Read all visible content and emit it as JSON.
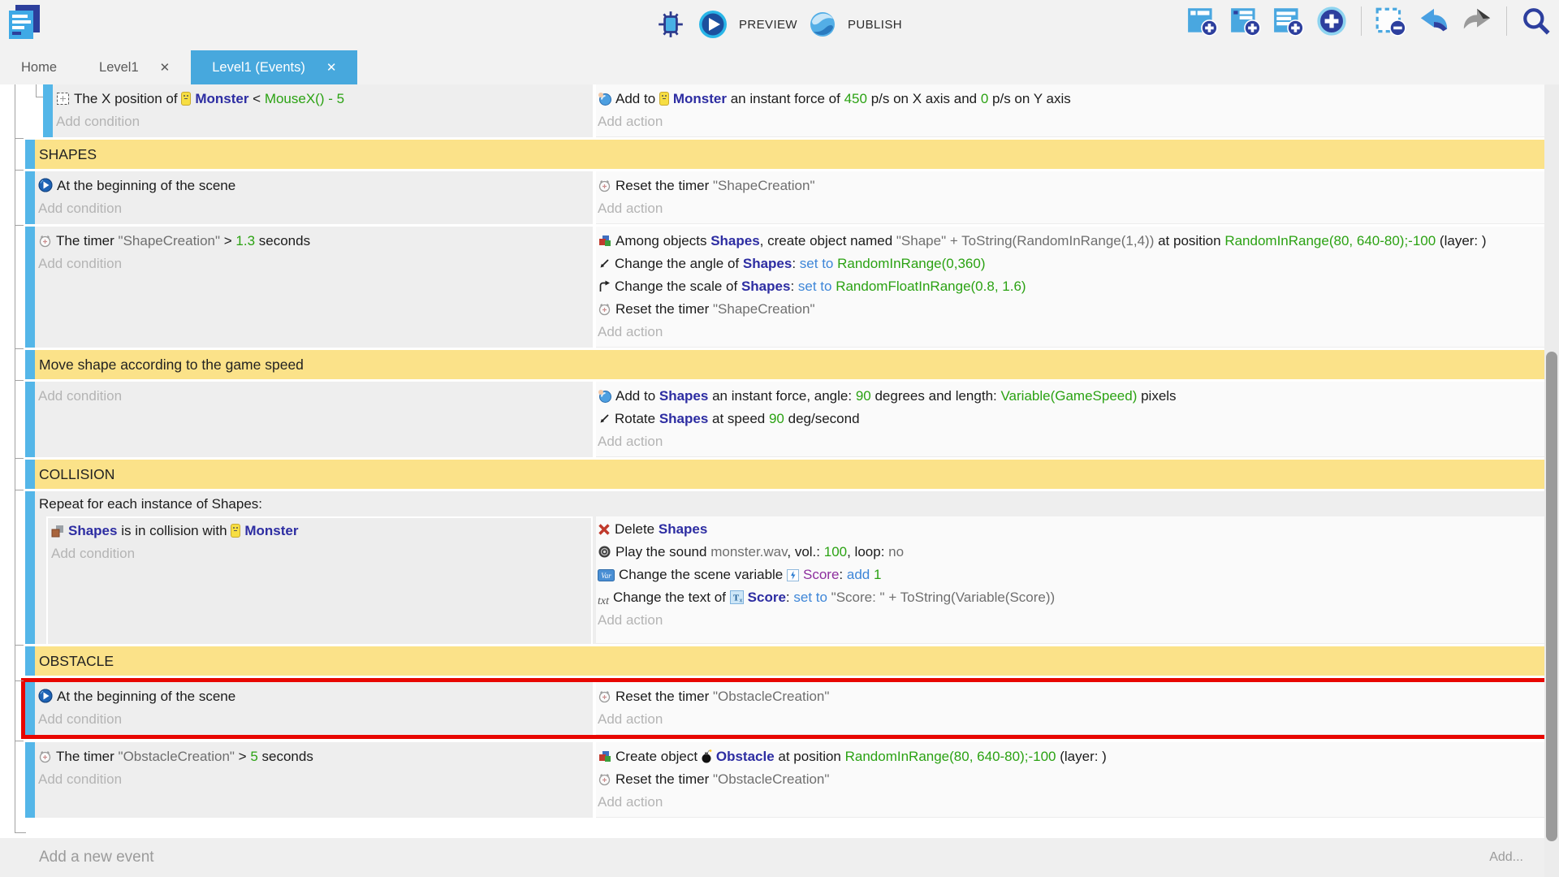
{
  "toolbar": {
    "preview_label": "PREVIEW",
    "publish_label": "PUBLISH",
    "right_icons": [
      "add-event-icon",
      "add-subevent-icon",
      "add-comment-icon",
      "add-new-icon",
      "separator",
      "unselect-icon",
      "undo-icon",
      "redo-icon",
      "separator",
      "search-icon"
    ]
  },
  "tabs": [
    {
      "label": "Home",
      "closable": false,
      "active": false
    },
    {
      "label": "Level1",
      "closable": true,
      "active": false
    },
    {
      "label": "Level1 (Events)",
      "closable": true,
      "active": true
    }
  ],
  "sheet": {
    "add_condition_label": "Add condition",
    "add_action_label": "Add action",
    "rows": [
      {
        "type": "event",
        "indent": true,
        "cond": [
          [
            {
              "i": "position-icon"
            },
            {
              "t": "The X position of ",
              "s": "p"
            },
            {
              "i": "monster-icon"
            },
            {
              "t": "Monster",
              "s": "o"
            },
            {
              "t": " < ",
              "s": "p"
            },
            {
              "t": "MouseX() - 5",
              "s": "g"
            }
          ]
        ],
        "act": [
          [
            {
              "i": "force-icon"
            },
            {
              "t": "Add to ",
              "s": "p"
            },
            {
              "i": "monster-icon"
            },
            {
              "t": "Monster",
              "s": "o"
            },
            {
              "t": " an instant force of ",
              "s": "p"
            },
            {
              "t": "450",
              "s": "g"
            },
            {
              "t": " p/s on X axis and ",
              "s": "p"
            },
            {
              "t": "0",
              "s": "g"
            },
            {
              "t": " p/s on Y axis",
              "s": "p"
            }
          ]
        ]
      },
      {
        "type": "header",
        "label": "SHAPES"
      },
      {
        "type": "event",
        "cond": [
          [
            {
              "i": "play-scene-icon"
            },
            {
              "t": "At the beginning of the scene",
              "s": "p"
            }
          ]
        ],
        "act": [
          [
            {
              "i": "timer-icon"
            },
            {
              "t": "Reset the timer ",
              "s": "p"
            },
            {
              "t": "\"ShapeCreation\"",
              "s": "m"
            }
          ]
        ]
      },
      {
        "type": "event",
        "cond": [
          [
            {
              "i": "timer-icon"
            },
            {
              "t": "The timer ",
              "s": "p"
            },
            {
              "t": "\"ShapeCreation\"",
              "s": "m"
            },
            {
              "t": " > ",
              "s": "p"
            },
            {
              "t": "1.3",
              "s": "g"
            },
            {
              "t": " seconds",
              "s": "p"
            }
          ]
        ],
        "act": [
          [
            {
              "i": "create-icon"
            },
            {
              "t": "Among objects ",
              "s": "p"
            },
            {
              "t": "Shapes",
              "s": "o"
            },
            {
              "t": ", create object named ",
              "s": "p"
            },
            {
              "t": "\"Shape\" + ToString(RandomInRange(1,4))",
              "s": "m"
            },
            {
              "t": " at position ",
              "s": "p"
            },
            {
              "t": "RandomInRange(80, 640-80);-100",
              "s": "g"
            },
            {
              "t": " (layer: )",
              "s": "p"
            }
          ],
          [
            {
              "i": "angle-icon"
            },
            {
              "t": "Change the angle of ",
              "s": "p"
            },
            {
              "t": "Shapes",
              "s": "o"
            },
            {
              "t": ": ",
              "s": "p"
            },
            {
              "t": "set to ",
              "s": "b"
            },
            {
              "t": "RandomInRange(0,360)",
              "s": "g"
            }
          ],
          [
            {
              "i": "scale-icon"
            },
            {
              "t": "Change the scale of ",
              "s": "p"
            },
            {
              "t": "Shapes",
              "s": "o"
            },
            {
              "t": ": ",
              "s": "p"
            },
            {
              "t": "set to ",
              "s": "b"
            },
            {
              "t": "RandomFloatInRange(0.8, 1.6)",
              "s": "g"
            }
          ],
          [
            {
              "i": "timer-icon"
            },
            {
              "t": "Reset the timer ",
              "s": "p"
            },
            {
              "t": "\"ShapeCreation\"",
              "s": "m"
            }
          ]
        ]
      },
      {
        "type": "header",
        "label": "Move shape according to the game speed"
      },
      {
        "type": "event",
        "cond": [],
        "act": [
          [
            {
              "i": "force-icon"
            },
            {
              "t": "Add to ",
              "s": "p"
            },
            {
              "t": "Shapes",
              "s": "o"
            },
            {
              "t": " an instant force, angle: ",
              "s": "p"
            },
            {
              "t": "90",
              "s": "g"
            },
            {
              "t": " degrees and length: ",
              "s": "p"
            },
            {
              "t": "Variable(GameSpeed)",
              "s": "g"
            },
            {
              "t": " pixels",
              "s": "p"
            }
          ],
          [
            {
              "i": "angle-icon"
            },
            {
              "t": "Rotate ",
              "s": "p"
            },
            {
              "t": "Shapes",
              "s": "o"
            },
            {
              "t": " at speed ",
              "s": "p"
            },
            {
              "t": "90",
              "s": "g"
            },
            {
              "t": " deg/second",
              "s": "p"
            }
          ]
        ]
      },
      {
        "type": "header",
        "label": "COLLISION"
      },
      {
        "type": "foreach",
        "repeat": "Repeat for each instance of Shapes:",
        "cond": [
          [
            {
              "i": "collision-icon"
            },
            {
              "t": "Shapes",
              "s": "o"
            },
            {
              "t": " is in collision with ",
              "s": "p"
            },
            {
              "i": "monster-icon"
            },
            {
              "t": "Monster",
              "s": "o"
            }
          ]
        ],
        "act": [
          [
            {
              "i": "delete-icon"
            },
            {
              "t": "Delete ",
              "s": "p"
            },
            {
              "t": "Shapes",
              "s": "o"
            }
          ],
          [
            {
              "i": "sound-icon"
            },
            {
              "t": "Play the sound ",
              "s": "p"
            },
            {
              "t": "monster.wav",
              "s": "m"
            },
            {
              "t": ", vol.: ",
              "s": "p"
            },
            {
              "t": "100",
              "s": "g"
            },
            {
              "t": ", loop: ",
              "s": "p"
            },
            {
              "t": "no",
              "s": "m"
            }
          ],
          [
            {
              "i": "variable-icon"
            },
            {
              "t": "Change the scene variable ",
              "s": "p"
            },
            {
              "i": "score-var-icon"
            },
            {
              "t": "Score",
              "s": "v"
            },
            {
              "t": ": ",
              "s": "p"
            },
            {
              "t": "add ",
              "s": "b"
            },
            {
              "t": "1",
              "s": "g"
            }
          ],
          [
            {
              "i": "txt-icon"
            },
            {
              "t": "Change the text of ",
              "s": "p"
            },
            {
              "i": "text-object-icon"
            },
            {
              "t": "Score",
              "s": "o"
            },
            {
              "t": ": ",
              "s": "p"
            },
            {
              "t": "set to ",
              "s": "b"
            },
            {
              "t": "\"Score: \" + ToString(Variable(Score))",
              "s": "m"
            }
          ]
        ]
      },
      {
        "type": "header",
        "label": "OBSTACLE"
      },
      {
        "type": "event",
        "highlight": true,
        "cond": [
          [
            {
              "i": "play-scene-icon"
            },
            {
              "t": "At the beginning of the scene",
              "s": "p"
            }
          ]
        ],
        "act": [
          [
            {
              "i": "timer-icon"
            },
            {
              "t": "Reset the timer ",
              "s": "p"
            },
            {
              "t": "\"ObstacleCreation\"",
              "s": "m"
            }
          ]
        ]
      },
      {
        "type": "event",
        "cond": [
          [
            {
              "i": "timer-icon"
            },
            {
              "t": "The timer ",
              "s": "p"
            },
            {
              "t": "\"ObstacleCreation\"",
              "s": "m"
            },
            {
              "t": " > ",
              "s": "p"
            },
            {
              "t": "5",
              "s": "g"
            },
            {
              "t": " seconds",
              "s": "p"
            }
          ]
        ],
        "act": [
          [
            {
              "i": "create-icon"
            },
            {
              "t": "Create object ",
              "s": "p"
            },
            {
              "i": "bomb-icon"
            },
            {
              "t": "Obstacle",
              "s": "o"
            },
            {
              "t": " at position ",
              "s": "p"
            },
            {
              "t": "RandomInRange(80, 640-80);-100",
              "s": "g"
            },
            {
              "t": " (layer: )",
              "s": "p"
            }
          ],
          [
            {
              "i": "timer-icon"
            },
            {
              "t": "Reset the timer ",
              "s": "p"
            },
            {
              "t": "\"ObstacleCreation\"",
              "s": "m"
            }
          ]
        ]
      }
    ],
    "footer": {
      "add_event_label": "Add a new event",
      "add_label": "Add..."
    }
  },
  "colors": {
    "accent_blue": "#47a8dd",
    "event_bar_blue": "#54b6e8",
    "group_header_yellow": "#fbe289",
    "highlight_red": "#e80600",
    "expression_green": "#2ba213",
    "object_blue": "#2d2da2",
    "keyword_blue": "#3e86d8",
    "variable_purple": "#8e2f9e",
    "muted_text": "#6f6f6f",
    "placeholder_gray": "#b4b4b4"
  }
}
